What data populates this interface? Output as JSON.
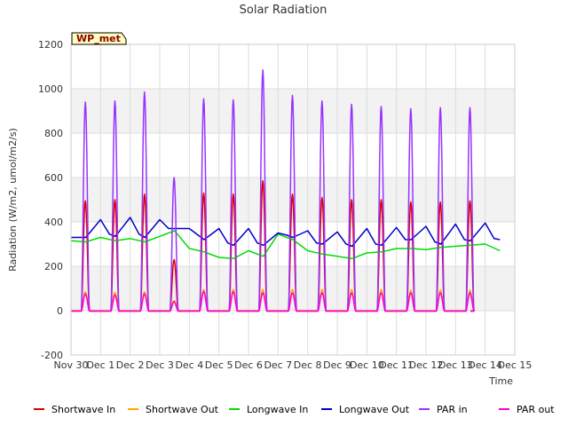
{
  "chart_data": {
    "type": "line",
    "title": "Solar Radiation",
    "xlabel": "Time",
    "ylabel": "Radiation (W/m2, umol/m2/s)",
    "site_label": "WP_met",
    "xlim": [
      0,
      15
    ],
    "ylim": [
      -200,
      1200
    ],
    "yticks": [
      -200,
      0,
      200,
      400,
      600,
      800,
      1000,
      1200
    ],
    "xticks": [
      {
        "x": 0,
        "label": "Nov 30"
      },
      {
        "x": 1,
        "label": "Dec 1"
      },
      {
        "x": 2,
        "label": "Dec 2"
      },
      {
        "x": 3,
        "label": "Dec 3"
      },
      {
        "x": 4,
        "label": "Dec 4"
      },
      {
        "x": 5,
        "label": "Dec 5"
      },
      {
        "x": 6,
        "label": "Dec 6"
      },
      {
        "x": 7,
        "label": "Dec 7"
      },
      {
        "x": 8,
        "label": "Dec 8"
      },
      {
        "x": 9,
        "label": "Dec 9"
      },
      {
        "x": 10,
        "label": "Dec 10"
      },
      {
        "x": 11,
        "label": "Dec 11"
      },
      {
        "x": 12,
        "label": "Dec 12"
      },
      {
        "x": 13,
        "label": "Dec 13"
      },
      {
        "x": 14,
        "label": "Dec 14"
      },
      {
        "x": 15,
        "label": "Dec 15"
      }
    ],
    "grid": true,
    "legend_position": "bottom",
    "day_start": 0.35,
    "day_end": 0.62,
    "series": [
      {
        "name": "Shortwave In",
        "color": "#dd0000",
        "kind": "daily",
        "night_value": -2,
        "peaks": [
          495,
          500,
          525,
          230,
          530,
          525,
          585,
          525,
          510,
          500,
          500,
          490,
          490,
          495
        ]
      },
      {
        "name": "Shortwave Out",
        "color": "#ffa500",
        "kind": "daily",
        "night_value": 0,
        "peaks": [
          85,
          82,
          85,
          45,
          95,
          95,
          95,
          95,
          95,
          95,
          95,
          92,
          92,
          92
        ]
      },
      {
        "name": "Longwave In",
        "color": "#00dd00",
        "kind": "continuous",
        "x": [
          0.0,
          0.5,
          1.0,
          1.5,
          2.0,
          2.5,
          3.0,
          3.5,
          4.0,
          4.5,
          5.0,
          5.5,
          6.0,
          6.5,
          7.0,
          7.5,
          8.0,
          8.5,
          9.0,
          9.5,
          10.0,
          10.5,
          11.0,
          11.5,
          12.0,
          12.5,
          13.0,
          13.5,
          14.0,
          14.5
        ],
        "values": [
          315,
          310,
          330,
          315,
          325,
          310,
          335,
          360,
          280,
          265,
          240,
          235,
          270,
          245,
          345,
          320,
          270,
          255,
          245,
          235,
          260,
          265,
          280,
          280,
          275,
          285,
          290,
          295,
          300,
          270
        ]
      },
      {
        "name": "Longwave Out",
        "color": "#0000cc",
        "kind": "continuous",
        "x": [
          0.0,
          0.5,
          1.0,
          1.3,
          1.5,
          2.0,
          2.3,
          2.5,
          3.0,
          3.3,
          3.5,
          4.0,
          4.3,
          4.5,
          5.0,
          5.3,
          5.5,
          6.0,
          6.3,
          6.5,
          7.0,
          7.3,
          7.5,
          8.0,
          8.3,
          8.5,
          9.0,
          9.3,
          9.5,
          10.0,
          10.3,
          10.5,
          11.0,
          11.3,
          11.5,
          12.0,
          12.3,
          12.5,
          13.0,
          13.3,
          13.5,
          14.0,
          14.3,
          14.5
        ],
        "values": [
          330,
          330,
          410,
          345,
          335,
          420,
          345,
          330,
          410,
          370,
          370,
          370,
          340,
          320,
          370,
          305,
          295,
          370,
          305,
          295,
          350,
          340,
          330,
          360,
          305,
          300,
          355,
          300,
          290,
          370,
          300,
          295,
          375,
          320,
          320,
          380,
          310,
          300,
          390,
          320,
          315,
          395,
          325,
          320
        ]
      },
      {
        "name": "PAR in",
        "color": "#9933ff",
        "kind": "daily",
        "night_value": -2,
        "peaks": [
          940,
          945,
          985,
          600,
          955,
          950,
          1085,
          970,
          945,
          930,
          920,
          910,
          915,
          915
        ]
      },
      {
        "name": "PAR out",
        "color": "#ff00cc",
        "kind": "daily",
        "night_value": -2,
        "peaks": [
          75,
          70,
          75,
          40,
          85,
          85,
          80,
          80,
          80,
          80,
          80,
          80,
          80,
          80
        ]
      }
    ]
  }
}
